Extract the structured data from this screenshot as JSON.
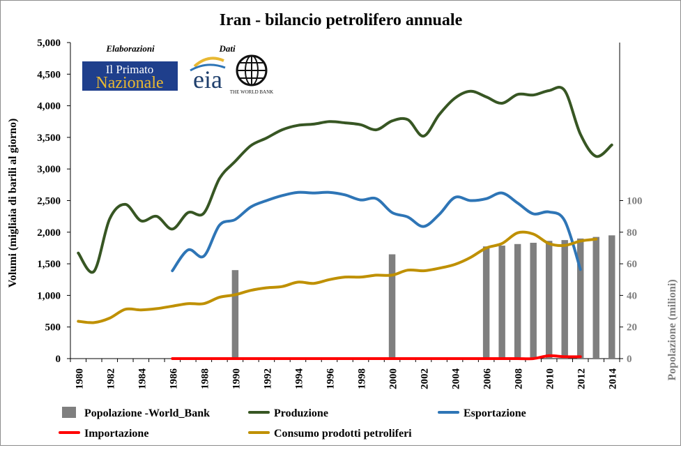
{
  "chart_data": {
    "type": "line",
    "title": "Iran - bilancio petrolifero annuale",
    "ylabel": "Volumi (migliaia di barili al giorno)",
    "y2label": "Popolazione (milioni)",
    "ylim": [
      0,
      5000
    ],
    "y2lim": [
      0,
      200
    ],
    "xlim": [
      1980,
      2014
    ],
    "x_ticks": [
      "1980",
      "1982",
      "1984",
      "1986",
      "1988",
      "1990",
      "1992",
      "1994",
      "1996",
      "1998",
      "2000",
      "2002",
      "2004",
      "2006",
      "2008",
      "2010",
      "2012",
      "2014"
    ],
    "y_ticks": [
      "0",
      "500",
      "1,000",
      "1,500",
      "2,000",
      "2,500",
      "3,000",
      "3,500",
      "4,000",
      "4,500",
      "5,000"
    ],
    "y2_ticks": [
      "0",
      "20",
      "40",
      "60",
      "80",
      "100"
    ],
    "grid": false,
    "legend_position": "bottom",
    "credits": {
      "elaborazioni": "Elaborazioni",
      "dati": "Dati",
      "logo1_line1": "Il Primato",
      "logo1_line2": "Nazionale",
      "logo2": "eia",
      "logo3": "THE WORLD BANK"
    },
    "series": [
      {
        "name": "Popolazione -World_Bank",
        "type": "bar",
        "axis": "right",
        "color": "#7f7f7f",
        "x": [
          1990,
          2000,
          2006,
          2007,
          2008,
          2009,
          2010,
          2011,
          2012,
          2013,
          2014
        ],
        "values": [
          56,
          66,
          71,
          71.5,
          72.5,
          73.3,
          74.5,
          75,
          76,
          77,
          78
        ]
      },
      {
        "name": "Produzione",
        "type": "line",
        "axis": "left",
        "color": "#375623",
        "x": [
          1980,
          1981,
          1982,
          1983,
          1984,
          1985,
          1986,
          1987,
          1988,
          1989,
          1990,
          1991,
          1992,
          1993,
          1994,
          1995,
          1996,
          1997,
          1998,
          1999,
          2000,
          2001,
          2002,
          2003,
          2004,
          2005,
          2006,
          2007,
          2008,
          2009,
          2010,
          2011,
          2012,
          2013,
          2014
        ],
        "values": [
          1670,
          1380,
          2210,
          2440,
          2180,
          2250,
          2050,
          2310,
          2300,
          2850,
          3120,
          3370,
          3490,
          3620,
          3690,
          3710,
          3750,
          3730,
          3700,
          3620,
          3760,
          3780,
          3520,
          3860,
          4120,
          4230,
          4140,
          4040,
          4180,
          4170,
          4240,
          4240,
          3550,
          3200,
          3380
        ]
      },
      {
        "name": "Esportazione",
        "type": "line",
        "axis": "left",
        "color": "#2e75b6",
        "x": [
          1986,
          1987,
          1988,
          1989,
          1990,
          1991,
          1992,
          1993,
          1994,
          1995,
          1996,
          1997,
          1998,
          1999,
          2000,
          2001,
          2002,
          2003,
          2004,
          2005,
          2006,
          2007,
          2008,
          2009,
          2010,
          2011,
          2012
        ],
        "values": [
          1390,
          1720,
          1620,
          2110,
          2200,
          2400,
          2500,
          2580,
          2630,
          2620,
          2630,
          2590,
          2510,
          2530,
          2310,
          2240,
          2090,
          2280,
          2550,
          2500,
          2530,
          2620,
          2460,
          2290,
          2320,
          2180,
          1410
        ]
      },
      {
        "name": "Importazione",
        "type": "line",
        "axis": "left",
        "color": "#ff0000",
        "x": [
          1986,
          1987,
          1988,
          1989,
          1990,
          1991,
          1992,
          1993,
          1994,
          1995,
          1996,
          1997,
          1998,
          1999,
          2000,
          2001,
          2002,
          2003,
          2004,
          2005,
          2006,
          2007,
          2008,
          2009,
          2010,
          2011,
          2012
        ],
        "values": [
          0,
          0,
          0,
          0,
          0,
          0,
          0,
          0,
          0,
          0,
          0,
          0,
          0,
          0,
          0,
          0,
          0,
          0,
          0,
          0,
          0,
          0,
          0,
          0,
          45,
          30,
          30
        ]
      },
      {
        "name": "Consumo prodotti petroliferi",
        "type": "line",
        "axis": "left",
        "color": "#bf9000",
        "x": [
          1980,
          1981,
          1982,
          1983,
          1984,
          1985,
          1986,
          1987,
          1988,
          1989,
          1990,
          1991,
          1992,
          1993,
          1994,
          1995,
          1996,
          1997,
          1998,
          1999,
          2000,
          2001,
          2002,
          2003,
          2004,
          2005,
          2006,
          2007,
          2008,
          2009,
          2010,
          2011,
          2012,
          2013
        ],
        "values": [
          590,
          570,
          640,
          780,
          770,
          790,
          830,
          870,
          870,
          970,
          1010,
          1080,
          1120,
          1140,
          1210,
          1190,
          1250,
          1290,
          1290,
          1320,
          1320,
          1400,
          1390,
          1430,
          1490,
          1600,
          1750,
          1820,
          1990,
          1970,
          1820,
          1790,
          1860,
          1890
        ]
      }
    ]
  }
}
